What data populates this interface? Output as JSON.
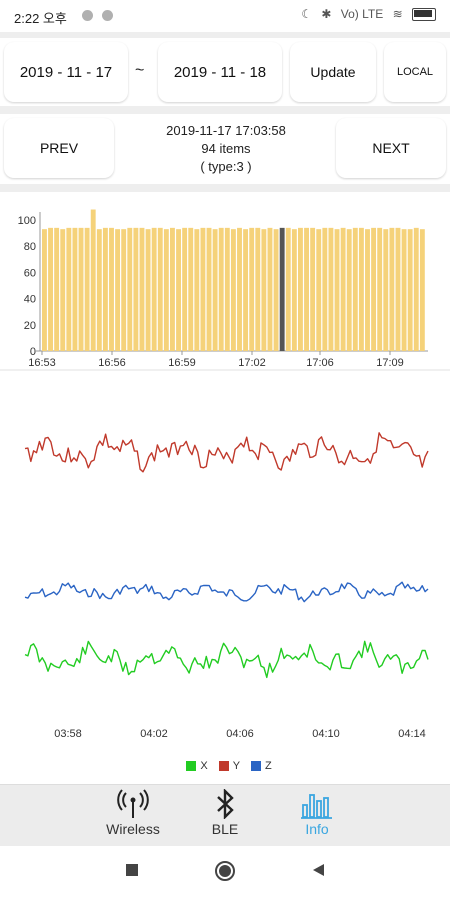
{
  "status": {
    "time": "2:22 오후",
    "right_text": "Vo) LTE"
  },
  "date_range": {
    "start": "2019 - 11 - 17",
    "separator": "~",
    "end": "2019 - 11 - 18",
    "update_label": "Update",
    "local_label": "LOCAL"
  },
  "navigation": {
    "prev_label": "PREV",
    "next_label": "NEXT",
    "timestamp": "2019-11-17 17:03:58",
    "items": "94 items",
    "type": "( type:3 )"
  },
  "chart_data": [
    {
      "type": "bar",
      "title": "",
      "ylim": [
        0,
        100
      ],
      "yticks": [
        "0",
        "20",
        "40",
        "60",
        "80",
        "100"
      ],
      "xticks": [
        "16:53",
        "16:56",
        "16:59",
        "17:02",
        "17:06",
        "17:09"
      ],
      "bar_color": "#f5d27a",
      "highlight_color": "#555555",
      "highlight_index": 39,
      "gap_after_index": 7,
      "values": [
        93,
        94,
        94,
        93,
        94,
        94,
        94,
        94,
        108,
        93,
        94,
        94,
        93,
        93,
        94,
        94,
        94,
        93,
        94,
        94,
        93,
        94,
        93,
        94,
        94,
        93,
        94,
        94,
        93,
        94,
        94,
        93,
        94,
        93,
        94,
        94,
        93,
        94,
        93,
        94,
        94,
        93,
        94,
        94,
        94,
        93,
        94,
        94,
        93,
        94,
        93,
        94,
        94,
        93,
        94,
        94,
        93,
        94,
        94,
        93,
        93,
        94,
        93
      ]
    },
    {
      "type": "line",
      "xticks": [
        "03:58",
        "04:02",
        "04:06",
        "04:10",
        "04:14"
      ],
      "series": [
        {
          "name": "X",
          "color": "#22cc22"
        },
        {
          "name": "Y",
          "color": "#c0392b"
        },
        {
          "name": "Z",
          "color": "#2a64c4"
        }
      ]
    }
  ],
  "legend": {
    "x": "X",
    "y": "Y",
    "z": "Z"
  },
  "tabs": [
    {
      "label": "Wireless",
      "icon": "antenna-icon"
    },
    {
      "label": "BLE",
      "icon": "bluetooth-icon"
    },
    {
      "label": "Info",
      "icon": "bar-chart-icon"
    }
  ]
}
